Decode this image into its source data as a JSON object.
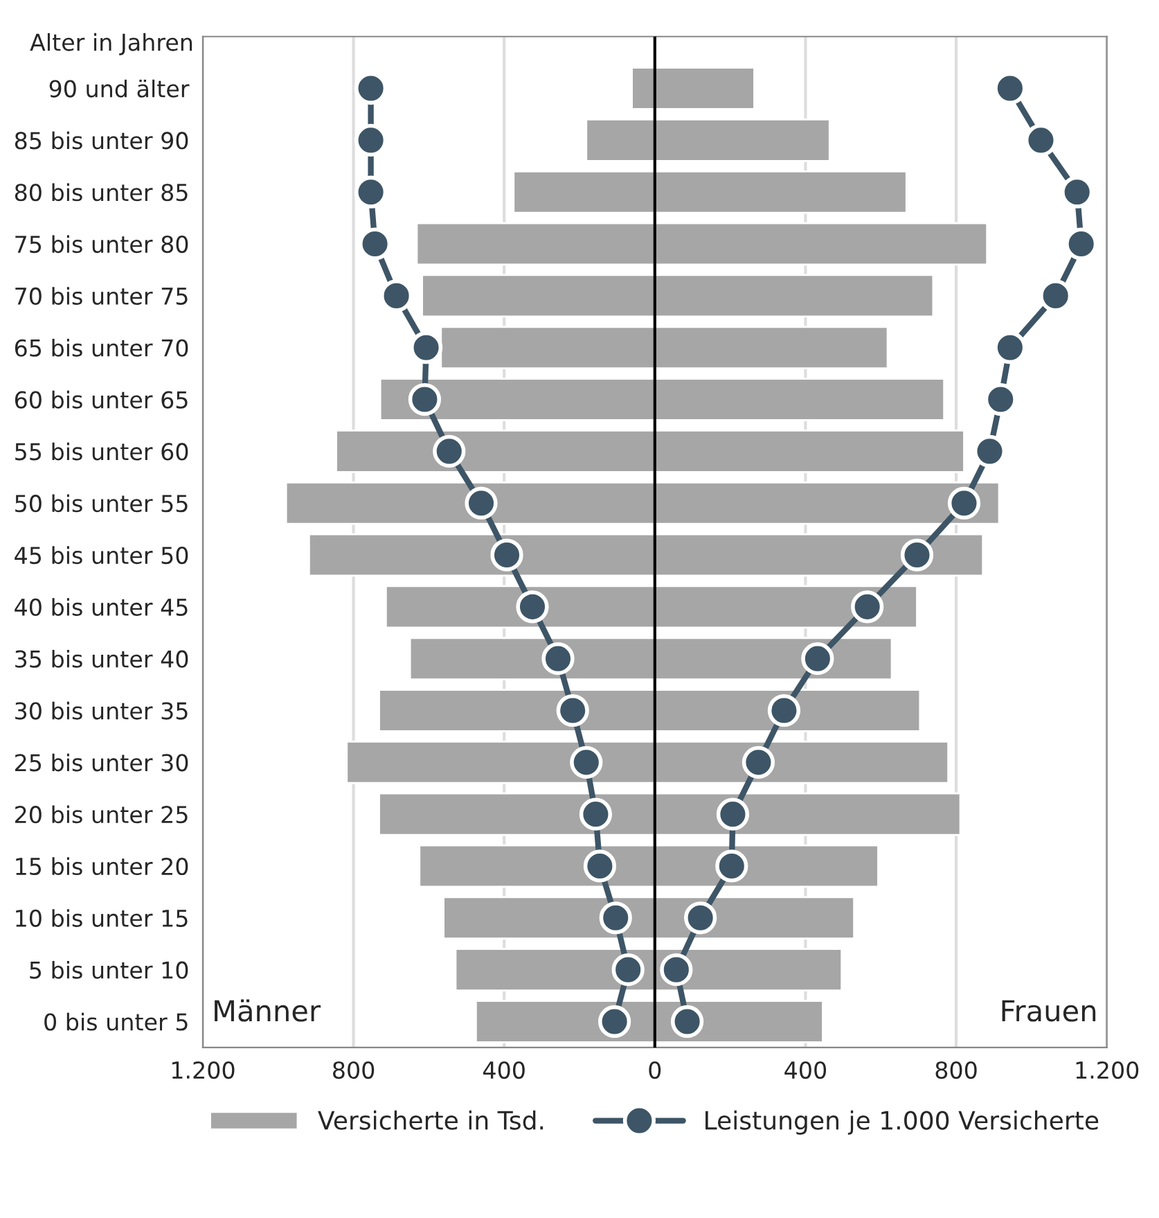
{
  "chart_data": {
    "type": "bar",
    "orientation": "horizontal",
    "ylabel": "Alter in Jahren",
    "categories": [
      "90 und älter",
      "85 bis unter 90",
      "80 bis unter 85",
      "75 bis unter 80",
      "70 bis unter 75",
      "65 bis unter 70",
      "60 bis unter 65",
      "55 bis unter 60",
      "50 bis unter 55",
      "45 bis unter 50",
      "40 bis unter 45",
      "35 bis unter 40",
      "30 bis unter 35",
      "25 bis unter 30",
      "20 bis unter 25",
      "15 bis unter 20",
      "10 bis unter 15",
      "5 bis unter 10",
      "0 bis unter 5"
    ],
    "series": [
      {
        "name": "Versicherte in Tsd.",
        "color": "#a6a6a6",
        "values": [
          -61,
          -182,
          -375,
          -632,
          -618,
          -568,
          -729,
          -846,
          -979,
          -918,
          -714,
          -650,
          -732,
          -818,
          -732,
          -625,
          -561,
          -529,
          -475
        ]
      },
      {
        "color": "#a6a6a6",
        "values": [
          264,
          464,
          668,
          882,
          739,
          618,
          768,
          821,
          914,
          871,
          696,
          629,
          704,
          779,
          811,
          593,
          529,
          496,
          446
        ]
      },
      {
        "name": "Leistungen je 1.000 Versicherte",
        "type": "line",
        "color": "#3d5566",
        "values": [
          -754,
          -754,
          -754,
          -743,
          -686,
          -607,
          -611,
          -546,
          -461,
          -393,
          -325,
          -257,
          -218,
          -182,
          -157,
          -146,
          -104,
          -71,
          -107
        ]
      },
      {
        "type": "line",
        "color": "#3d5566",
        "values": [
          943,
          1025,
          1121,
          1132,
          1064,
          943,
          918,
          889,
          821,
          696,
          564,
          432,
          343,
          275,
          207,
          204,
          121,
          57,
          86
        ]
      }
    ],
    "xlim": [
      -1200,
      1200
    ],
    "xticks": [
      {
        "value": -1200,
        "label": "1.200"
      },
      {
        "value": -800,
        "label": "800"
      },
      {
        "value": -400,
        "label": "400"
      },
      0,
      400,
      800,
      {
        "value": 1200,
        "label": "1.200"
      }
    ],
    "ref_lines": [
      {
        "axis": "x",
        "value": 0,
        "color": "#000000"
      }
    ],
    "annotations": [
      "Männer",
      "Frauen"
    ],
    "stacked": true,
    "grid": "x",
    "legend": "bottom",
    "marker": "circle",
    "line_style": "solid"
  }
}
